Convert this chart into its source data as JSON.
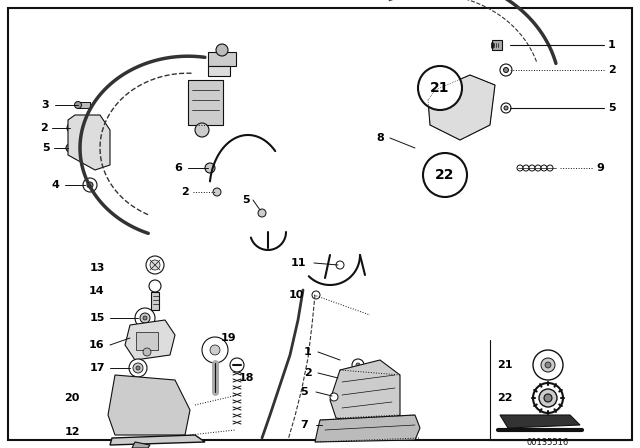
{
  "bg_color": "#ffffff",
  "border_color": "#000000",
  "diagram_id": "00135516",
  "dark": "#111111",
  "gray": "#888888",
  "lightgray": "#cccccc"
}
